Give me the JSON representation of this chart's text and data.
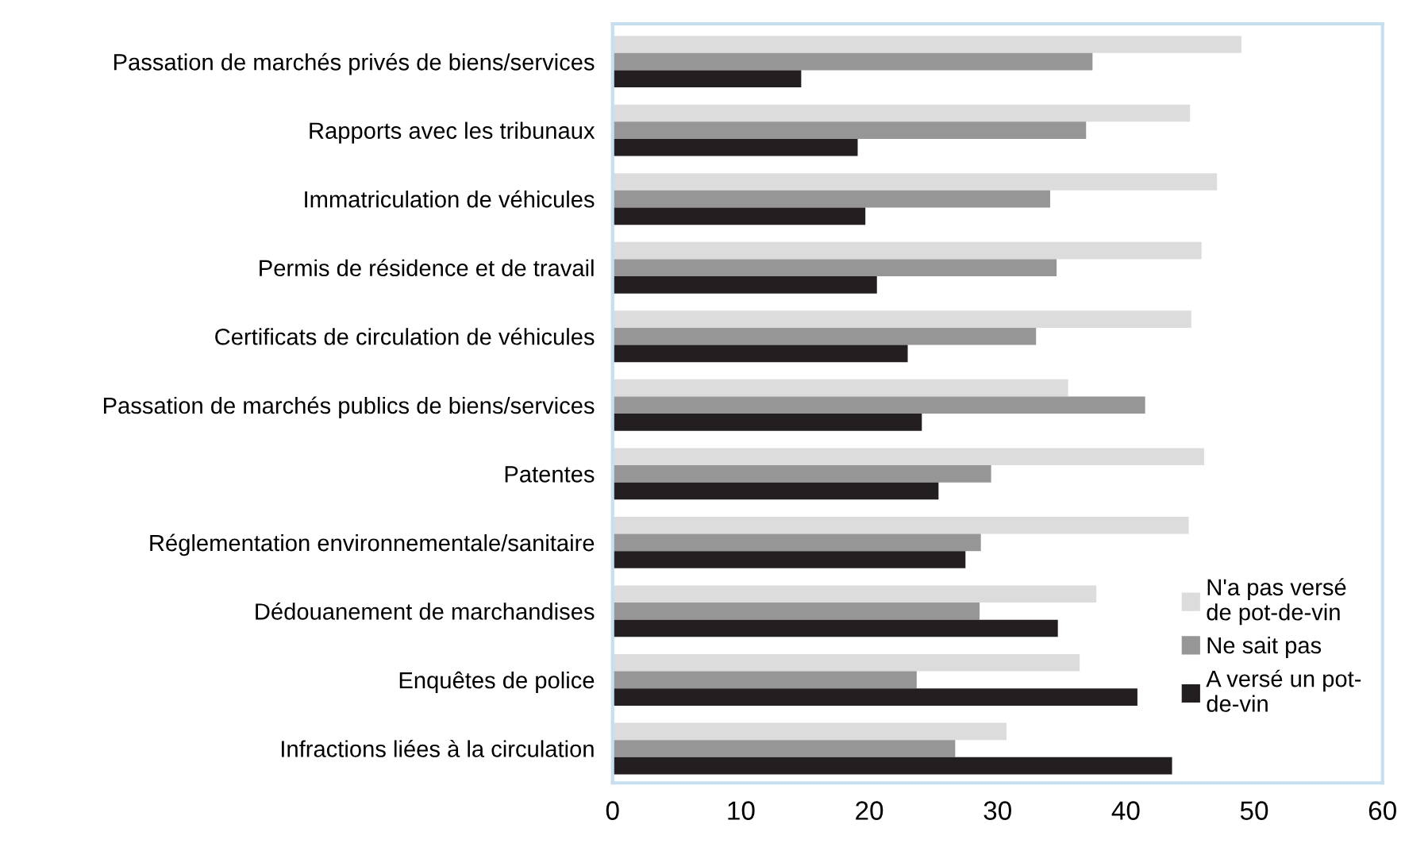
{
  "chart_data": {
    "type": "bar",
    "orientation": "horizontal",
    "categories": [
      "Passation de marchés privés de biens/services",
      "Rapports avec les tribunaux",
      "Immatriculation de véhicules",
      "Permis de résidence et de travail",
      "Certificats de circulation de véhicules",
      "Passation de marchés publics de biens/services",
      "Patentes",
      "Réglementation environnementale/sanitaire",
      "Dédouanement de marchandises",
      "Enquêtes de police",
      "Infractions liées à la circulation"
    ],
    "series": [
      {
        "name": "N'a pas versé\nde pot-de-vin",
        "color": "#dcdcdc",
        "values": [
          49.0,
          45.0,
          47.1,
          45.9,
          45.1,
          35.5,
          46.1,
          44.9,
          37.7,
          36.4,
          30.7
        ]
      },
      {
        "name": "Ne sait pas",
        "color": "#969696",
        "values": [
          37.4,
          36.9,
          34.1,
          34.6,
          33.0,
          41.5,
          29.5,
          28.7,
          28.6,
          23.7,
          26.7
        ]
      },
      {
        "name": "A versé un pot-\nde-vin",
        "color": "#231f20",
        "values": [
          14.7,
          19.1,
          19.7,
          20.6,
          23.0,
          24.1,
          25.4,
          27.5,
          34.7,
          40.9,
          43.6
        ]
      }
    ],
    "xlim": [
      0,
      60
    ],
    "xticks": [
      0,
      10,
      20,
      30,
      40,
      50,
      60
    ],
    "grid": false,
    "legend": "bottom right"
  }
}
